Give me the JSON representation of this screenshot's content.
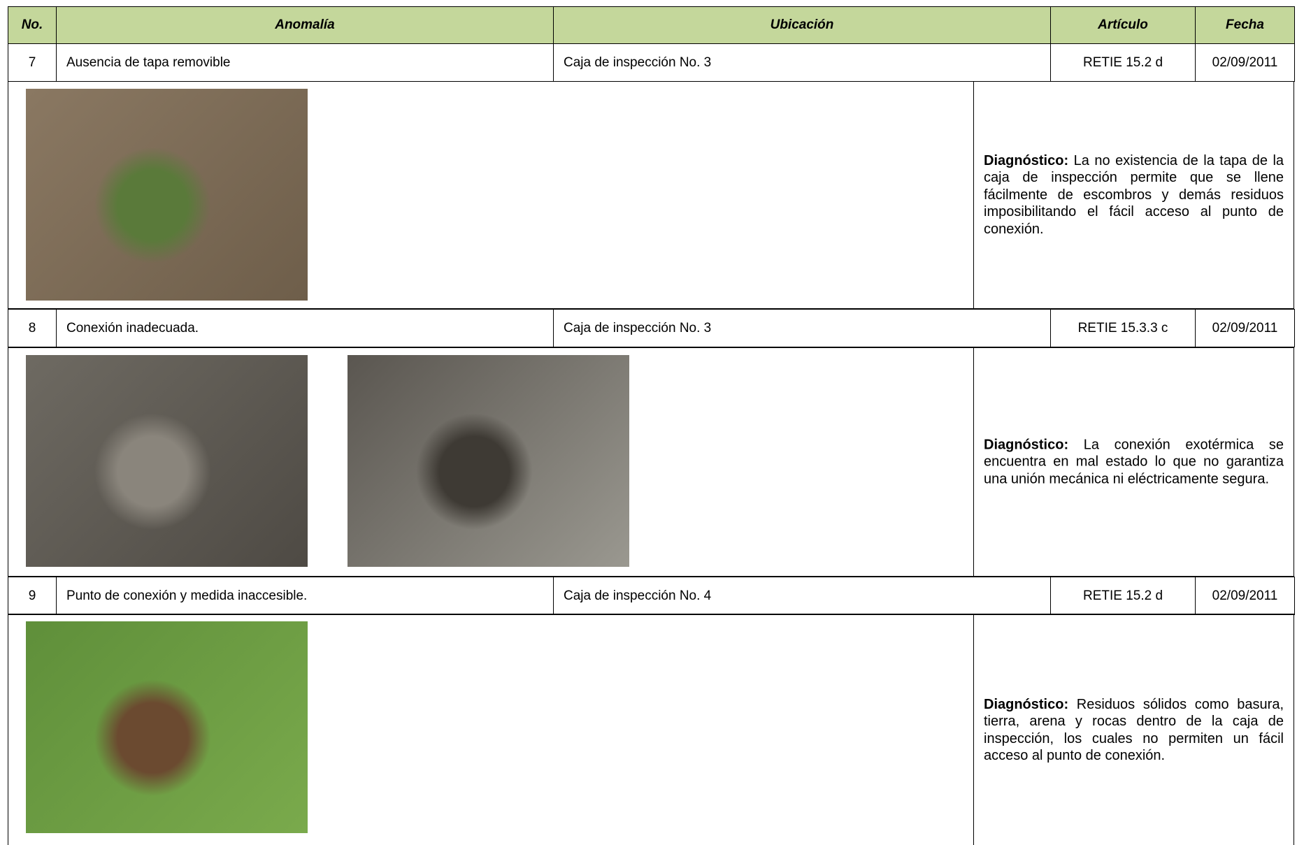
{
  "header": {
    "no": "No.",
    "anomalia": "Anomalía",
    "ubicacion": "Ubicación",
    "articulo": "Artículo",
    "fecha": "Fecha"
  },
  "rows": [
    {
      "no": "7",
      "anomalia": "Ausencia de tapa removible",
      "ubicacion": "Caja de inspección No. 3",
      "articulo": "RETIE 15.2 d",
      "fecha": "02/09/2011",
      "diagnostico_label": "Diagnóstico:",
      "diagnostico": "La no existencia de la tapa de la caja de inspección permite que se llene fácilmente de escombros y demás residuos imposibilitando el fácil acceso al punto de conexión."
    },
    {
      "no": "8",
      "anomalia": "Conexión inadecuada.",
      "ubicacion": "Caja de inspección No. 3",
      "articulo": "RETIE 15.3.3 c",
      "fecha": "02/09/2011",
      "diagnostico_label": "Diagnóstico:",
      "diagnostico": "La conexión exotérmica se encuentra en mal estado lo que no garantiza una unión mecánica ni eléctricamente segura."
    },
    {
      "no": "9",
      "anomalia": "Punto de conexión y medida inaccesible.",
      "ubicacion": "Caja de inspección No. 4",
      "articulo": "RETIE 15.2 d",
      "fecha": "02/09/2011",
      "diagnostico_label": "Diagnóstico:",
      "diagnostico": "Residuos sólidos como basura, tierra, arena y rocas dentro de la caja de inspección, los cuales no permiten un fácil acceso  al punto de conexión."
    }
  ]
}
